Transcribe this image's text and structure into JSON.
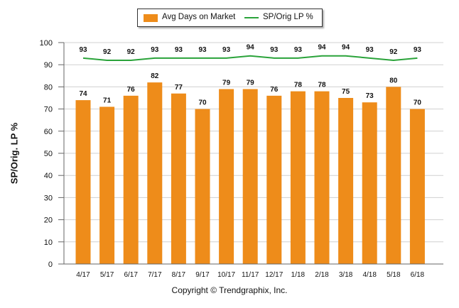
{
  "chart_data": {
    "type": "bar",
    "categories": [
      "4/17",
      "5/17",
      "6/17",
      "7/17",
      "8/17",
      "9/17",
      "10/17",
      "11/17",
      "12/17",
      "1/18",
      "2/18",
      "3/18",
      "4/18",
      "5/18",
      "6/18"
    ],
    "series": [
      {
        "name": "Avg Days on Market",
        "type": "bar",
        "color": "#ee8c1a",
        "values": [
          74,
          71,
          76,
          82,
          77,
          70,
          79,
          79,
          76,
          78,
          78,
          75,
          73,
          80,
          70
        ]
      },
      {
        "name": "SP/Orig LP %",
        "type": "line",
        "color": "#2aa33a",
        "values": [
          93,
          92,
          92,
          93,
          93,
          93,
          93,
          94,
          93,
          93,
          94,
          94,
          93,
          92,
          93
        ]
      }
    ],
    "ylabel": "SP/Orig. LP %",
    "ylim": [
      0,
      100
    ],
    "yticks": [
      0,
      10,
      20,
      30,
      40,
      50,
      60,
      70,
      80,
      90,
      100
    ],
    "grid": true,
    "legend": "top-center"
  },
  "footer": "Copyright © Trendgraphix, Inc."
}
